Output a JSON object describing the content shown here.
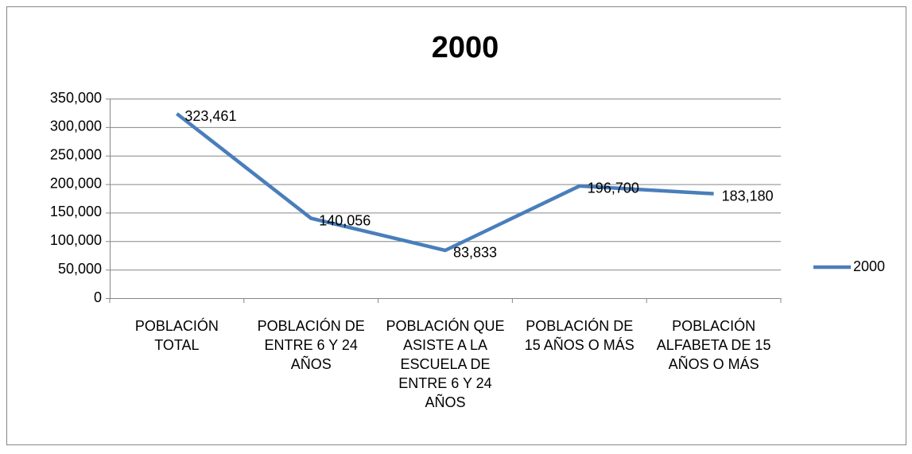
{
  "chart_data": {
    "type": "line",
    "title": "2000",
    "categories": [
      "POBLACIÓN TOTAL",
      "POBLACIÓN DE ENTRE 6 Y 24 AÑOS",
      "POBLACIÓN QUE ASISTE A LA ESCUELA DE ENTRE 6 Y 24 AÑOS",
      "POBLACIÓN DE 15 AÑOS O MÁS",
      "POBLACIÓN ALFABETA DE 15 AÑOS O MÁS"
    ],
    "series": [
      {
        "name": "2000",
        "color": "#4a7ebb",
        "values": [
          323461,
          140056,
          83833,
          196700,
          183180
        ],
        "value_labels": [
          "323,461",
          "140,056",
          "83,833",
          "196,700",
          "183,180"
        ]
      }
    ],
    "ylim": [
      0,
      350000
    ],
    "yticks": [
      0,
      {
        "value": 50000,
        "label": "50,000"
      },
      {
        "value": 100000,
        "label": "100,000"
      },
      {
        "value": 150000,
        "label": "150,000"
      },
      {
        "value": 200000,
        "label": "200,000"
      },
      {
        "value": 250000,
        "label": "250,000"
      },
      {
        "value": 300000,
        "label": "300,000"
      },
      {
        "value": 350000,
        "label": "350,000"
      }
    ],
    "grid": true,
    "legend": "right"
  }
}
